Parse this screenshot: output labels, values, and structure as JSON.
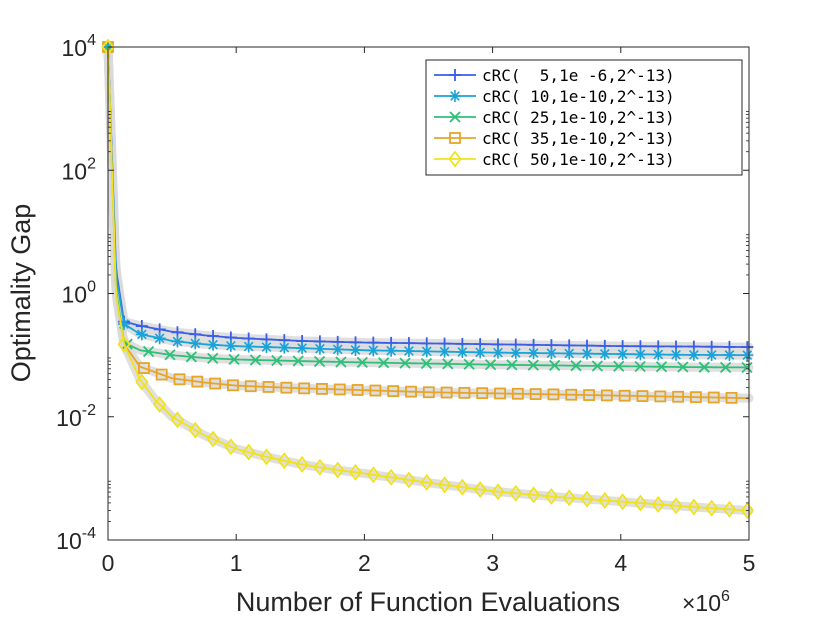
{
  "chart_data": {
    "type": "line",
    "title": "",
    "xlabel": "Number of Function Evaluations",
    "ylabel": "Optimality Gap",
    "x_exponent_label": "×10",
    "x_exponent_power": "6",
    "xlim": [
      0,
      5
    ],
    "ylim": [
      0.0001,
      10000
    ],
    "yscale": "log",
    "grid": false,
    "legend_position": "top-right",
    "x_ticks": [
      "0",
      "1",
      "2",
      "3",
      "4",
      "5"
    ],
    "x_tick_values": [
      0,
      1,
      2,
      3,
      4,
      5
    ],
    "y_ticks": [
      {
        "base": "10",
        "exp": "-4",
        "value": 0.0001
      },
      {
        "base": "10",
        "exp": "-2",
        "value": 0.01
      },
      {
        "base": "10",
        "exp": "0",
        "value": 1
      },
      {
        "base": "10",
        "exp": "2",
        "value": 100
      },
      {
        "base": "10",
        "exp": "4",
        "value": 10000
      }
    ],
    "series": [
      {
        "name": "cRC(  5,1e -6,2^-13)",
        "color": "#3a5ee8",
        "marker": "plus",
        "x": [
          0,
          0.0625,
          0.125,
          0.25,
          0.5,
          0.75,
          1.0,
          1.5,
          2.0,
          2.5,
          3.0,
          3.5,
          4.0,
          4.5,
          5.0
        ],
        "y": [
          10000,
          2.5,
          0.35,
          0.3,
          0.24,
          0.21,
          0.19,
          0.17,
          0.16,
          0.155,
          0.15,
          0.145,
          0.14,
          0.138,
          0.135
        ],
        "marker_step": 0.1389,
        "marker_start": 0.125
      },
      {
        "name": "cRC( 10,1e-10,2^-13)",
        "color": "#1aa3d9",
        "marker": "star",
        "x": [
          0,
          0.0625,
          0.125,
          0.25,
          0.5,
          0.75,
          1.0,
          1.5,
          2.0,
          2.5,
          3.0,
          3.5,
          4.0,
          4.5,
          5.0
        ],
        "y": [
          10000,
          2.0,
          0.32,
          0.22,
          0.17,
          0.15,
          0.14,
          0.13,
          0.12,
          0.115,
          0.11,
          0.107,
          0.104,
          0.101,
          0.1
        ],
        "marker_step": 0.1389,
        "marker_start": 0.125
      },
      {
        "name": "cRC( 25,1e-10,2^-13)",
        "color": "#2ebf79",
        "marker": "x",
        "x": [
          0,
          0.0625,
          0.125,
          0.25,
          0.5,
          0.75,
          1.0,
          1.5,
          2.0,
          2.5,
          3.0,
          3.5,
          4.0,
          4.5,
          5.0
        ],
        "y": [
          10000,
          1.2,
          0.16,
          0.12,
          0.1,
          0.09,
          0.085,
          0.08,
          0.076,
          0.073,
          0.07,
          0.068,
          0.066,
          0.064,
          0.063
        ],
        "marker_step": 0.1667,
        "marker_start": 0.15
      },
      {
        "name": "cRC( 35,1e-10,2^-13)",
        "color": "#e6a528",
        "marker": "square",
        "x": [
          0,
          0.0625,
          0.125,
          0.25,
          0.5,
          0.75,
          1.0,
          1.5,
          2.0,
          2.5,
          3.0,
          3.5,
          4.0,
          4.5,
          5.0
        ],
        "y": [
          10000,
          1.0,
          0.15,
          0.065,
          0.042,
          0.036,
          0.032,
          0.029,
          0.027,
          0.025,
          0.024,
          0.023,
          0.022,
          0.021,
          0.02
        ],
        "marker_step": 0.1389,
        "marker_start": 0.28
      },
      {
        "name": "cRC( 50,1e-10,2^-13)",
        "color": "#f0e21e",
        "marker": "diamond",
        "x": [
          0,
          0.0625,
          0.125,
          0.25,
          0.375,
          0.5,
          0.75,
          1.0,
          1.25,
          1.5,
          1.75,
          2.0,
          2.5,
          3.0,
          3.5,
          4.0,
          4.5,
          5.0
        ],
        "y": [
          10000,
          1.0,
          0.15,
          0.04,
          0.018,
          0.01,
          0.005,
          0.003,
          0.0022,
          0.0017,
          0.0014,
          0.0012,
          0.00085,
          0.00062,
          0.0005,
          0.00042,
          0.00035,
          0.0003
        ],
        "marker_step": 0.1389,
        "marker_start": 0.125
      }
    ]
  }
}
